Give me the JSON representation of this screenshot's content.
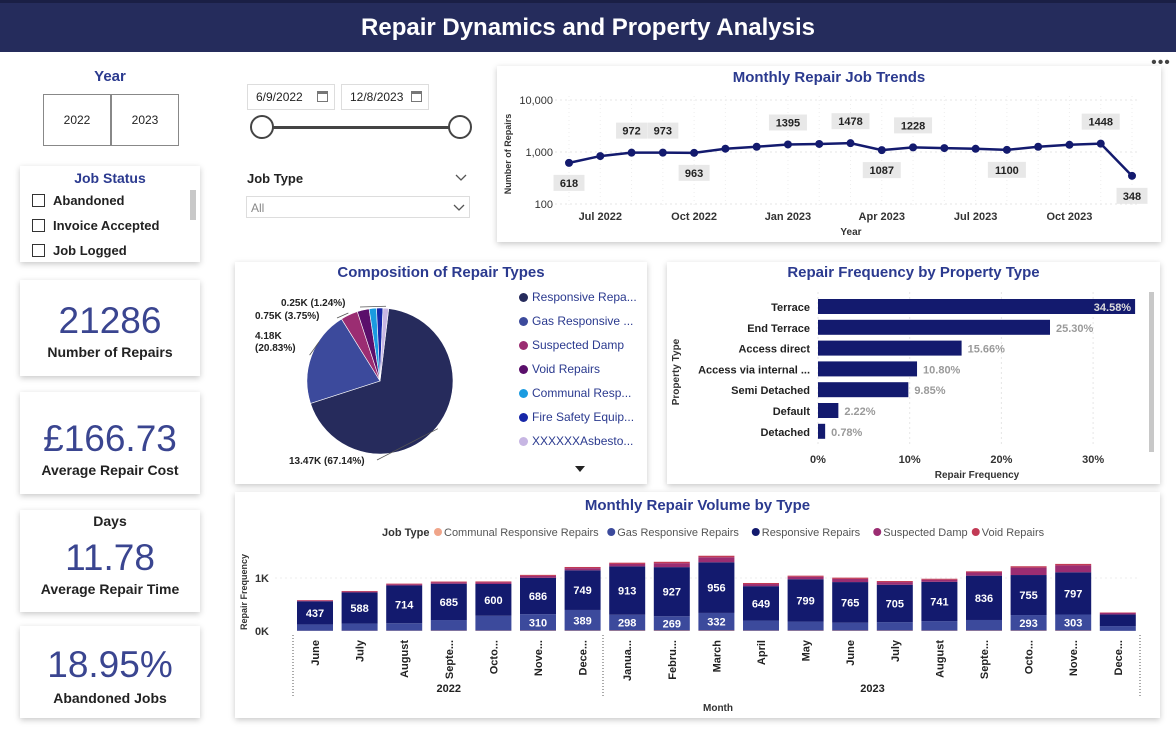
{
  "header": {
    "title": "Repair Dynamics and Property Analysis",
    "more_icon": "more-options-icon"
  },
  "year_slicer": {
    "title": "Year",
    "options": [
      "2022",
      "2023"
    ]
  },
  "date_slicer": {
    "start": "6/9/2022",
    "end": "12/8/2023"
  },
  "job_type_slicer": {
    "title": "Job Type",
    "value": "All"
  },
  "job_status_slicer": {
    "title": "Job Status",
    "items": [
      "Abandoned",
      "Invoice Accepted",
      "Job Logged"
    ]
  },
  "kpis": {
    "repairs": {
      "value": "21286",
      "label": "Number of Repairs"
    },
    "cost": {
      "value": "£166.73",
      "label": "Average Repair Cost"
    },
    "time": {
      "heading": "Days",
      "value": "11.78",
      "label": "Average Repair Time"
    },
    "abandoned": {
      "value": "18.95%",
      "label": "Abandoned Jobs"
    }
  },
  "colors": {
    "navy": "#131a6e",
    "header": "#252c5c",
    "responsive": "#262b5c",
    "gas": "#3c4a9c",
    "damp": "#9b2d72",
    "void": "#5a0f6b",
    "communal": "#1a9be0",
    "fire": "#1727a8",
    "asbestos": "#c7b6e3",
    "void_bar": "#c23a55",
    "communal_bar": "#f0a58a"
  },
  "chart_data": [
    {
      "id": "monthly-trend",
      "type": "line",
      "title": "Monthly Repair Job Trends",
      "xlabel": "Year",
      "ylabel": "Number of Repairs",
      "yscale": "log",
      "ylim": [
        100,
        10000
      ],
      "y_ticks": [
        "10,000",
        "1,000",
        "100"
      ],
      "x_ticks": [
        "Jul 2022",
        "Oct 2022",
        "Jan 2023",
        "Apr 2023",
        "Jul 2023",
        "Oct 2023"
      ],
      "x": [
        "2022-06",
        "2022-07",
        "2022-08",
        "2022-09",
        "2022-10",
        "2022-11",
        "2022-12",
        "2023-01",
        "2023-02",
        "2023-03",
        "2023-04",
        "2023-05",
        "2023-06",
        "2023-07",
        "2023-08",
        "2023-09",
        "2023-10",
        "2023-11",
        "2023-12"
      ],
      "values": [
        618,
        835,
        972,
        973,
        963,
        1157,
        1262,
        1395,
        1429,
        1478,
        1087,
        1228,
        1190,
        1152,
        1100,
        1262,
        1376,
        1448,
        348
      ],
      "labels": [
        {
          "i": 0,
          "text": "618",
          "pos": "below"
        },
        {
          "i": 2,
          "text": "972",
          "pos": "above"
        },
        {
          "i": 3,
          "text": "973",
          "pos": "above"
        },
        {
          "i": 4,
          "text": "963",
          "pos": "below"
        },
        {
          "i": 7,
          "text": "1395",
          "pos": "above"
        },
        {
          "i": 9,
          "text": "1478",
          "pos": "above"
        },
        {
          "i": 10,
          "text": "1087",
          "pos": "below"
        },
        {
          "i": 11,
          "text": "1228",
          "pos": "above"
        },
        {
          "i": 14,
          "text": "1100",
          "pos": "below"
        },
        {
          "i": 17,
          "text": "1448",
          "pos": "above"
        },
        {
          "i": 18,
          "text": "348",
          "pos": "below"
        }
      ]
    },
    {
      "id": "repair-types",
      "type": "pie",
      "title": "Composition of Repair Types",
      "slices": [
        {
          "name": "Responsive Repairs",
          "legend": "Responsive Repa...",
          "value": 67.14,
          "label": "13.47K (67.14%)"
        },
        {
          "name": "Gas Responsive Repairs",
          "legend": "Gas Responsive ...",
          "value": 20.83,
          "label": "4.18K\n(20.83%)"
        },
        {
          "name": "Suspected Damp",
          "legend": "Suspected Damp",
          "value": 3.75,
          "label": "0.75K (3.75%)"
        },
        {
          "name": "Void Repairs",
          "legend": "Void Repairs",
          "value": 2.6,
          "label": ""
        },
        {
          "name": "Communal Responsive Repairs",
          "legend": "Communal Resp...",
          "value": 1.6,
          "label": ""
        },
        {
          "name": "Fire Safety Equipment",
          "legend": "Fire Safety Equip...",
          "value": 1.4,
          "label": ""
        },
        {
          "name": "XXXXXXAsbestos",
          "legend": "XXXXXXAsbesto...",
          "value": 1.24,
          "label": "0.25K (1.24%)"
        }
      ]
    },
    {
      "id": "property-type",
      "type": "bar",
      "orientation": "horizontal",
      "title": "Repair Frequency by Property Type",
      "xlabel": "Repair Frequency",
      "ylabel": "Property Type",
      "xlim": [
        0,
        35
      ],
      "x_ticks": [
        "0%",
        "10%",
        "20%",
        "30%"
      ],
      "categories": [
        "Terrace",
        "End Terrace",
        "Access direct",
        "Access via internal ...",
        "Semi Detached",
        "Default",
        "Detached"
      ],
      "values": [
        34.58,
        25.3,
        15.66,
        10.8,
        9.85,
        2.22,
        0.78
      ],
      "labels": [
        "34.58%",
        "25.30%",
        "15.66%",
        "10.80%",
        "9.85%",
        "2.22%",
        "0.78%"
      ]
    },
    {
      "id": "monthly-volume",
      "type": "bar",
      "stacked": true,
      "title": "Monthly Repair Volume by Type",
      "xlabel": "Month",
      "ylabel": "Repair Frequency",
      "legend_title": "Job Type",
      "ylim": [
        0,
        1500
      ],
      "y_ticks": [
        "1K",
        "0K"
      ],
      "categories": [
        "June",
        "July",
        "August",
        "Septe...",
        "Octo...",
        "Nove...",
        "Dece...",
        "Janua...",
        "Febru...",
        "March",
        "April",
        "May",
        "June",
        "July",
        "August",
        "Septe...",
        "Octo...",
        "Nove...",
        "Dece..."
      ],
      "years": [
        {
          "label": "2022",
          "from": 0,
          "to": 6
        },
        {
          "label": "2023",
          "from": 7,
          "to": 18
        }
      ],
      "series": [
        {
          "name": "Communal Responsive Repairs",
          "values": [
            4,
            5,
            6,
            7,
            7,
            8,
            8,
            9,
            9,
            9,
            7,
            8,
            8,
            8,
            7,
            8,
            8,
            8,
            3
          ]
        },
        {
          "name": "Gas Responsive Repairs",
          "values": [
            120,
            135,
            140,
            200,
            280,
            310,
            389,
            298,
            269,
            332,
            190,
            170,
            150,
            160,
            180,
            200,
            293,
            303,
            90
          ]
        },
        {
          "name": "Responsive Repairs",
          "values": [
            437,
            588,
            714,
            685,
            600,
            686,
            749,
            913,
            927,
            956,
            649,
            799,
            765,
            705,
            741,
            836,
            755,
            797,
            220
          ]
        },
        {
          "name": "Suspected Damp",
          "values": [
            12,
            15,
            20,
            25,
            30,
            35,
            40,
            45,
            75,
            95,
            40,
            45,
            60,
            50,
            40,
            60,
            140,
            130,
            30
          ]
        },
        {
          "name": "Void Repairs",
          "values": [
            10,
            12,
            14,
            16,
            18,
            20,
            22,
            24,
            26,
            28,
            20,
            22,
            24,
            20,
            18,
            22,
            26,
            28,
            8
          ]
        }
      ],
      "visible_labels": {
        "Responsive Repairs": [
          "437",
          "588",
          "714",
          "685",
          "600",
          "686",
          "749",
          "913",
          "927",
          "956",
          "649",
          "799",
          "765",
          "705",
          "741",
          "836",
          "755",
          "797",
          ""
        ],
        "Gas Responsive Repairs": [
          "",
          "",
          "",
          "",
          "",
          "310",
          "389",
          "298",
          "269",
          "332",
          "",
          "",
          "",
          "",
          "",
          "",
          "293",
          "303",
          ""
        ]
      }
    }
  ]
}
